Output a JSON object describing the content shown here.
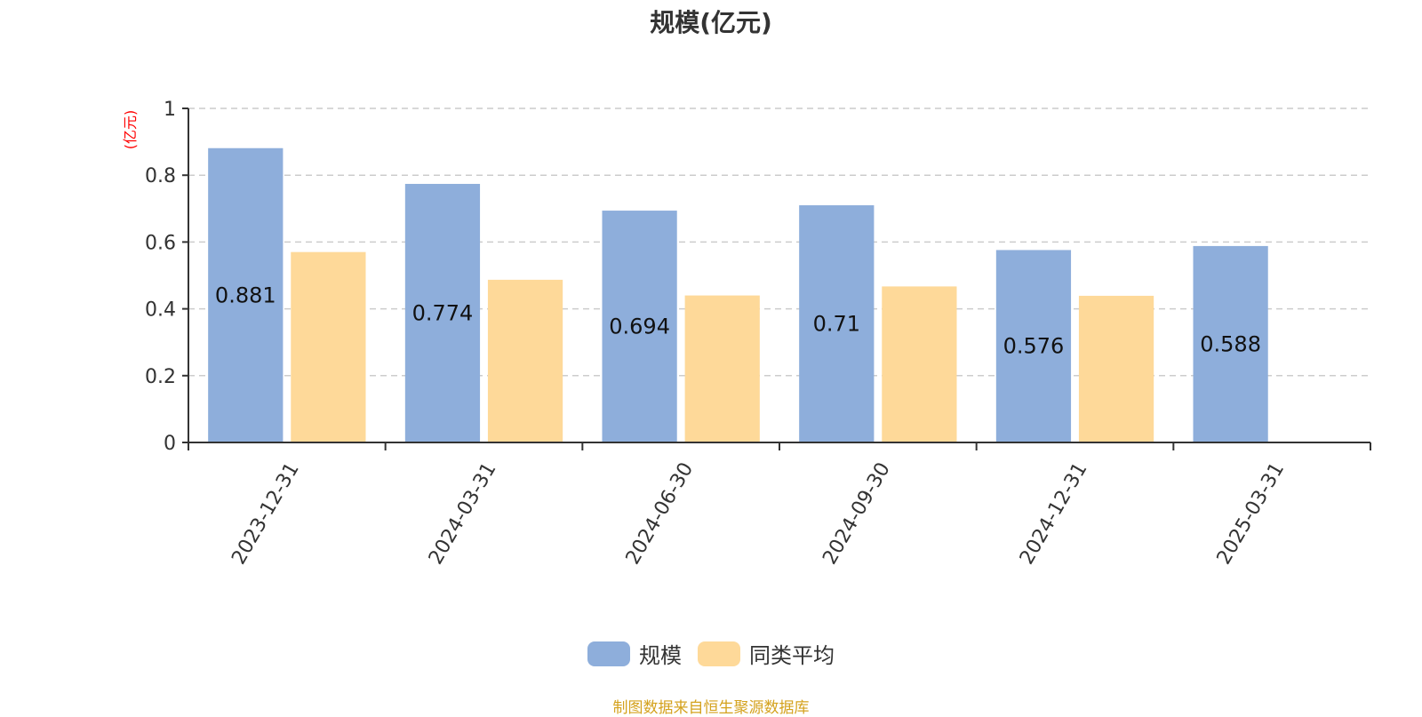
{
  "chart_data": {
    "type": "bar",
    "title": "规模(亿元)",
    "ylabel": "(亿元)",
    "ylim": [
      0,
      1
    ],
    "yticks": [
      "0",
      "0.2",
      "0.4",
      "0.6",
      "0.8",
      "1"
    ],
    "grid": true,
    "legend_position": "bottom",
    "categories": [
      "2023-12-31",
      "2024-03-31",
      "2024-06-30",
      "2024-09-30",
      "2024-12-31",
      "2025-03-31"
    ],
    "series": [
      {
        "name": "规模",
        "color": "#8eaedb",
        "values": [
          0.881,
          0.774,
          0.694,
          0.71,
          0.576,
          0.588
        ],
        "labels": [
          "0.881",
          "0.774",
          "0.694",
          "0.71",
          "0.576",
          "0.588"
        ]
      },
      {
        "name": "同类平均",
        "color": "#fed999",
        "values": [
          0.57,
          0.487,
          0.44,
          0.467,
          0.439,
          null
        ]
      }
    ]
  },
  "source_note": "制图数据来自恒生聚源数据库"
}
